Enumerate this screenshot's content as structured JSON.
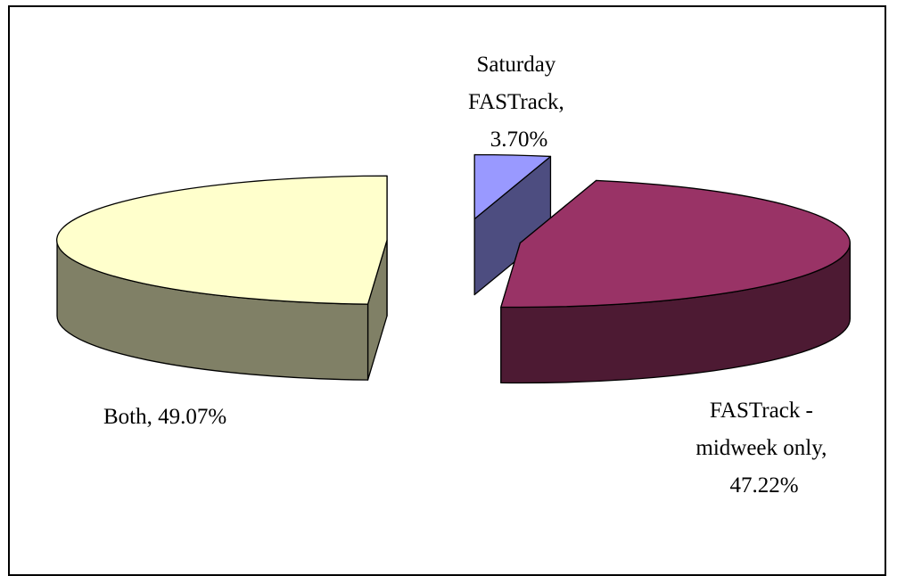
{
  "chart_data": {
    "type": "pie",
    "style": "3d-exploded",
    "title": "",
    "legend": "none",
    "unit": "%",
    "slices": [
      {
        "label": "Saturday FASTrack",
        "value": 3.7,
        "label_lines": [
          "Saturday",
          "FASTrack,",
          "3.70%"
        ],
        "top_color": "#9999ff",
        "side_color": "#4d4d80"
      },
      {
        "label": "FASTrack - midweek only",
        "value": 47.22,
        "label_lines": [
          "FASTrack -",
          "midweek only,",
          "47.22%"
        ],
        "top_color": "#993366",
        "side_color": "#4d1a33"
      },
      {
        "label": "Both",
        "value": 49.07,
        "label_lines": [
          "Both, 49.07%"
        ],
        "top_color": "#ffffcc",
        "side_color": "#808066"
      }
    ]
  }
}
